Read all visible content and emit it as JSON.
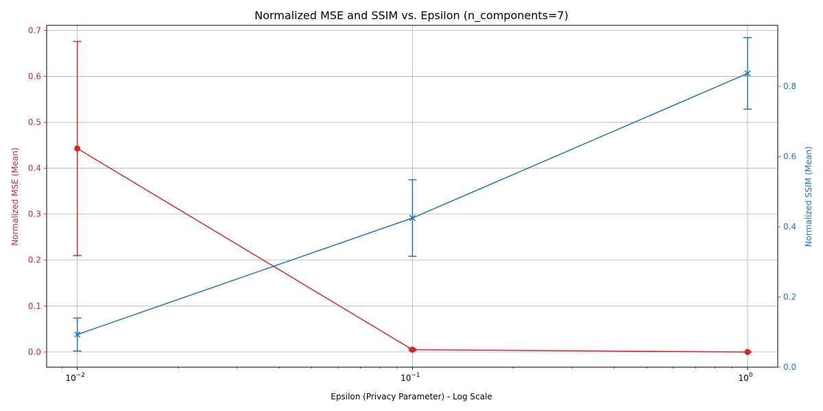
{
  "chart_data": {
    "type": "line",
    "title": "Normalized MSE and SSIM vs. Epsilon (n_components=7)",
    "xlabel": "Epsilon (Privacy Parameter) - Log Scale",
    "x_scale": "log",
    "xlim": [
      0.0081,
      1.23
    ],
    "x": [
      0.01,
      0.1,
      1.0
    ],
    "x_ticks": [
      {
        "value": 0.01,
        "label": "10",
        "exp": "−2"
      },
      {
        "value": 0.1,
        "label": "10",
        "exp": "−1"
      },
      {
        "value": 1.0,
        "label": "10",
        "exp": "0"
      }
    ],
    "grid": true,
    "series": [
      {
        "name": "Normalized MSE (Mean)",
        "axis": "left",
        "color": "#d62728",
        "marker": "o",
        "values": [
          0.443,
          0.005,
          0.0
        ],
        "err": [
          0.233,
          0.002,
          0.0
        ]
      },
      {
        "name": "Normalized SSIM (Mean)",
        "axis": "right",
        "color": "#1f77b4",
        "marker": "x",
        "values": [
          0.093,
          0.425,
          0.837
        ],
        "err": [
          0.047,
          0.109,
          0.102
        ]
      }
    ],
    "y_left": {
      "label": "Normalized MSE (Mean)",
      "ylim": [
        -0.033,
        0.711
      ],
      "ticks": [
        "0.0",
        "0.1",
        "0.2",
        "0.3",
        "0.4",
        "0.5",
        "0.6",
        "0.7"
      ],
      "tick_values": [
        0,
        0.1,
        0.2,
        0.3,
        0.4,
        0.5,
        0.6,
        0.7
      ],
      "color": "#d62728"
    },
    "y_right": {
      "label": "Normalized SSIM (Mean)",
      "ylim": [
        0.0,
        0.974
      ],
      "ticks": [
        "0.0",
        "0.2",
        "0.4",
        "0.6",
        "0.8"
      ],
      "tick_values": [
        0,
        0.2,
        0.4,
        0.6,
        0.8
      ],
      "color": "#1f77b4"
    }
  }
}
